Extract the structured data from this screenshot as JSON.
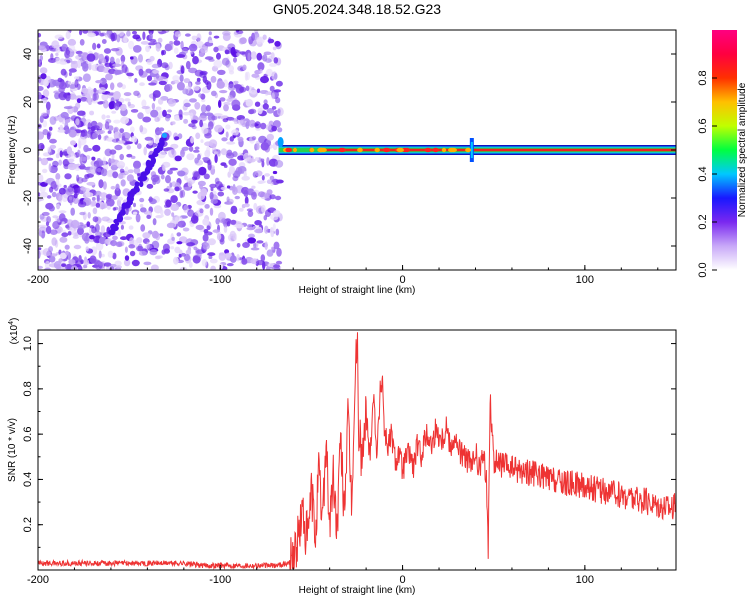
{
  "figure_title": "GN05.2024.348.18.52.G23",
  "chart_data": [
    {
      "type": "heatmap",
      "xlabel": "Height of straight line (km)",
      "ylabel": "Frequency (Hz)",
      "xlim": [
        -200,
        150
      ],
      "ylim": [
        -50,
        50
      ],
      "xticks": [
        "-200",
        "-100",
        "0",
        "100"
      ],
      "yticks": [
        "40",
        "20",
        "0",
        "-20",
        "-40"
      ],
      "colorbar": {
        "label": "Normalized spectral amplitude",
        "range": [
          0,
          1
        ],
        "ticks": [
          "0.0",
          "0.2",
          "0.4",
          "0.6",
          "0.8"
        ],
        "colors": [
          "#ffffff",
          "#c8a8f8",
          "#7a28f0",
          "#1818ff",
          "#00c8ff",
          "#00ff40",
          "#c0ff00",
          "#ffc000",
          "#ff3000",
          "#ff0040",
          "#ff0080"
        ]
      },
      "noise_region_x": [
        -200,
        -67
      ],
      "diagonal_feature": {
        "x": [
          -160,
          -130
        ],
        "y": [
          -35,
          6
        ]
      },
      "carrier_line": {
        "x": [
          -68,
          150
        ],
        "y": 0
      },
      "grid": false
    },
    {
      "type": "line",
      "xlabel": "Height of straight line (km)",
      "ylabel": "SNR (10 * v/v)",
      "y_multiplier": "(x10",
      "y_multiplier_exp": "4",
      "xlim": [
        -200,
        150
      ],
      "ylim": [
        0,
        1.06
      ],
      "xticks": [
        "-200",
        "-100",
        "0",
        "100"
      ],
      "yticks": [
        "1.0",
        "0.8",
        "0.6",
        "0.4",
        "0.2"
      ],
      "color": "#ee3333",
      "grid": false,
      "x": [
        -200,
        -190,
        -180,
        -170,
        -160,
        -150,
        -140,
        -130,
        -120,
        -110,
        -100,
        -90,
        -80,
        -70,
        -62,
        -58,
        -55,
        -52,
        -50,
        -48,
        -46,
        -44,
        -42,
        -40,
        -38,
        -36,
        -34,
        -32,
        -30,
        -28,
        -26,
        -25,
        -24,
        -22,
        -20,
        -18,
        -16,
        -14,
        -12,
        -11,
        -10,
        -8,
        -6,
        -4,
        -2,
        0,
        2,
        4,
        6,
        8,
        10,
        12,
        14,
        16,
        18,
        20,
        22,
        24,
        26,
        28,
        30,
        32,
        34,
        36,
        38,
        40,
        42,
        44,
        46,
        47,
        48,
        50,
        55,
        60,
        65,
        70,
        75,
        80,
        85,
        90,
        95,
        100,
        105,
        110,
        115,
        120,
        125,
        130,
        135,
        140,
        145,
        150
      ],
      "y": [
        0.03,
        0.03,
        0.03,
        0.03,
        0.03,
        0.03,
        0.03,
        0.03,
        0.03,
        0.02,
        0.02,
        0.02,
        0.02,
        0.02,
        0.03,
        0.1,
        0.25,
        0.12,
        0.35,
        0.15,
        0.42,
        0.22,
        0.58,
        0.2,
        0.4,
        0.18,
        0.55,
        0.28,
        0.65,
        0.3,
        0.8,
        1.05,
        0.6,
        0.48,
        0.7,
        0.5,
        0.78,
        0.52,
        0.82,
        0.85,
        0.62,
        0.55,
        0.6,
        0.48,
        0.52,
        0.44,
        0.5,
        0.52,
        0.45,
        0.55,
        0.5,
        0.58,
        0.6,
        0.55,
        0.62,
        0.6,
        0.58,
        0.65,
        0.55,
        0.58,
        0.55,
        0.52,
        0.5,
        0.48,
        0.45,
        0.52,
        0.44,
        0.5,
        0.42,
        0.08,
        0.78,
        0.48,
        0.46,
        0.45,
        0.44,
        0.43,
        0.42,
        0.4,
        0.39,
        0.38,
        0.38,
        0.37,
        0.36,
        0.35,
        0.34,
        0.33,
        0.32,
        0.31,
        0.3,
        0.29,
        0.28,
        0.28
      ]
    }
  ]
}
